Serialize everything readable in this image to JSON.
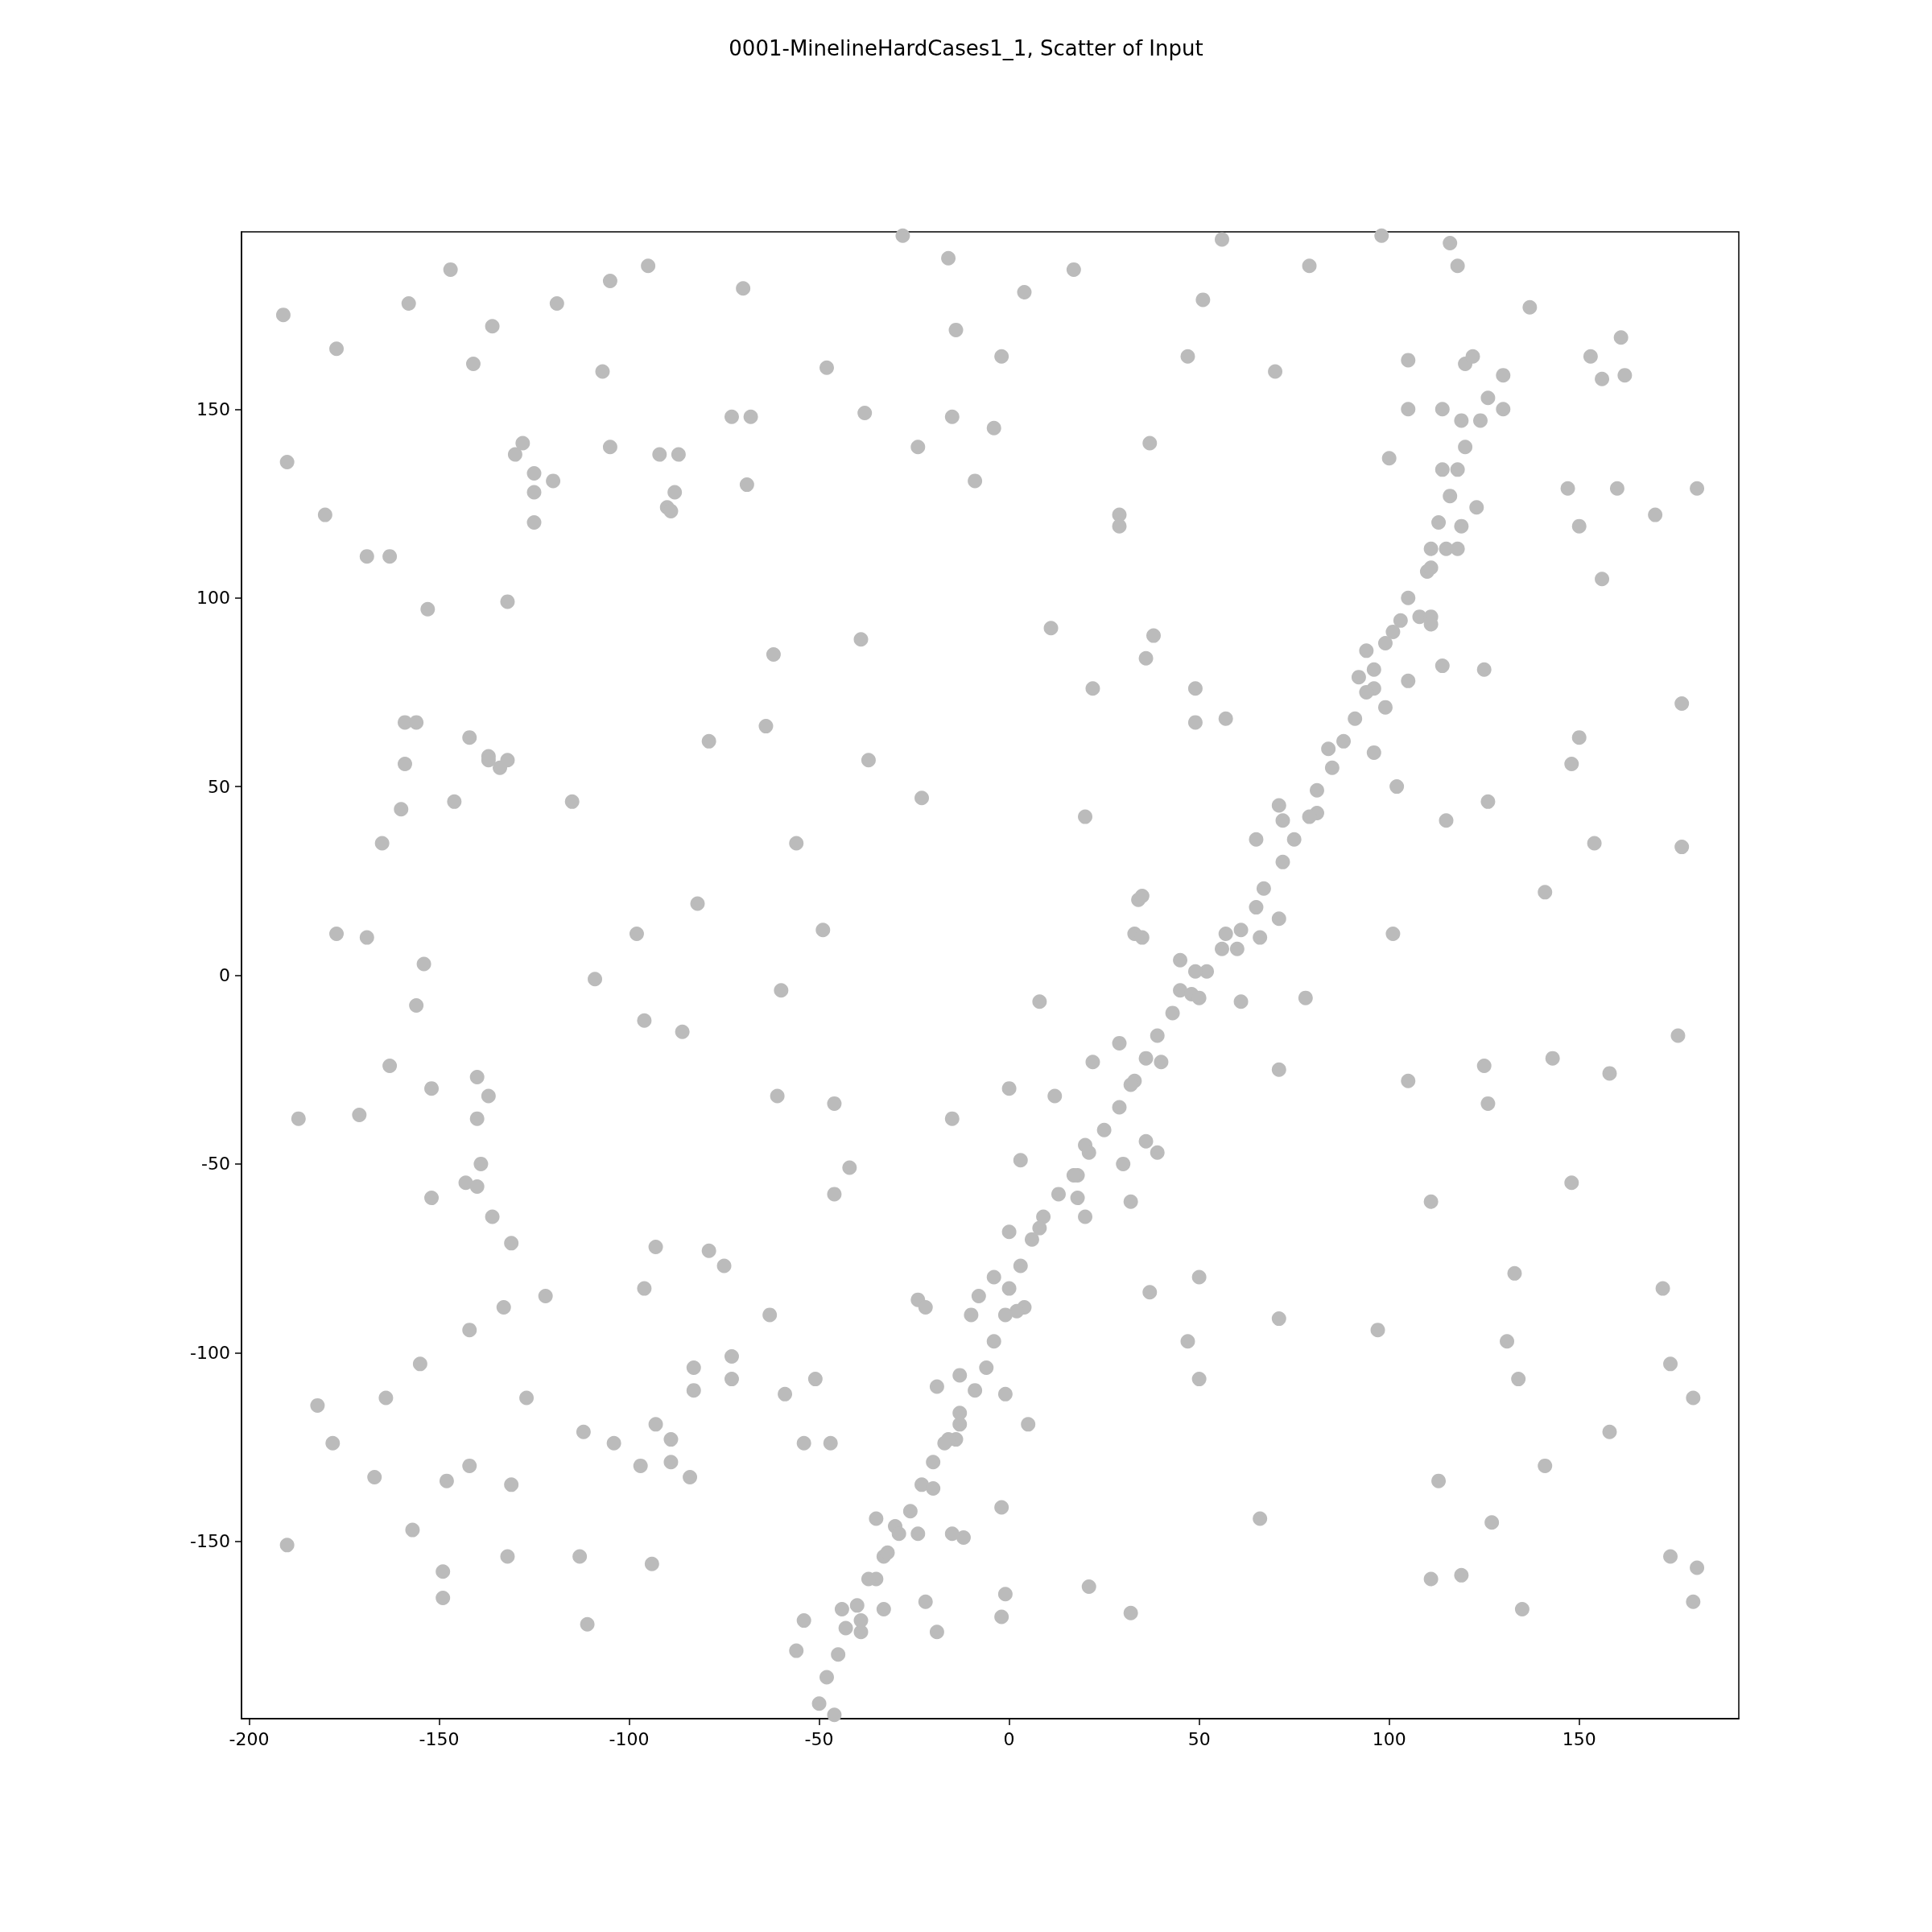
{
  "chart_data": {
    "type": "scatter",
    "title": "0001-MinelineHardCases1_1, Scatter of Input",
    "xlim": [
      -202,
      192
    ],
    "ylim": [
      -197,
      197
    ],
    "xticks": [
      -200,
      -150,
      -100,
      -50,
      0,
      50,
      100,
      150
    ],
    "yticks": [
      -150,
      -100,
      -50,
      0,
      50,
      100,
      150
    ],
    "grid": false,
    "marker": "circle",
    "series": [
      {
        "color": "#bbbbbb",
        "x": [
          -191,
          -190,
          -177,
          -180,
          -169,
          -163,
          -158,
          -147,
          -136,
          -141,
          -153,
          -132,
          -128,
          -130,
          -125,
          -125,
          -125,
          -120,
          -119,
          -105,
          -107,
          -105,
          -95,
          -92,
          -87,
          -88,
          -90,
          -89,
          -70,
          -73,
          -68,
          -69,
          -48,
          -38,
          -39,
          -62,
          -28,
          -16,
          -14,
          -15,
          -24,
          -9,
          -4,
          -2,
          4,
          17,
          51,
          47,
          56,
          79,
          70,
          98,
          116,
          118,
          105,
          120,
          122,
          137,
          130,
          126,
          130,
          114,
          105,
          119,
          124,
          153,
          156,
          161,
          162,
          181,
          170,
          160,
          147,
          150,
          156,
          177,
          150,
          148,
          154,
          177,
          141,
          100,
          114,
          118,
          116,
          123,
          113,
          119,
          111,
          115,
          118,
          120,
          110,
          111,
          105,
          108,
          111,
          111,
          103,
          101,
          99,
          94,
          96,
          92,
          96,
          94,
          99,
          105,
          114,
          125,
          91,
          96,
          88,
          84,
          85,
          81,
          102,
          115,
          126,
          81,
          79,
          71,
          72,
          75,
          65,
          72,
          67,
          65,
          71,
          61,
          57,
          66,
          56,
          60,
          101,
          52,
          49,
          45,
          45,
          48,
          50,
          61,
          78,
          43,
          39,
          29,
          40,
          36,
          22,
          33,
          32,
          71,
          105,
          125,
          143,
          158,
          176,
          126,
          29,
          25,
          20,
          21,
          39,
          36,
          30,
          3,
          18,
          17,
          13,
          18,
          32,
          20,
          9,
          8,
          0,
          6,
          3,
          -4,
          0,
          -8,
          4,
          2,
          -1,
          -10,
          -4,
          -6,
          -13,
          -1,
          -9,
          -19,
          -13,
          -13,
          5,
          -14,
          -16,
          -17,
          -20,
          -23,
          -20,
          -26,
          -12,
          -15,
          -24,
          -35,
          -30,
          -29,
          -33,
          -32,
          -35,
          -37,
          -33,
          -40,
          -22,
          -44,
          -39,
          -43,
          -39,
          -19,
          -54,
          -56,
          -45,
          -48,
          -50,
          -46,
          -2,
          -1,
          21,
          32,
          -2,
          66,
          47,
          50,
          50,
          37,
          71,
          97,
          111,
          113,
          111,
          119,
          127,
          135,
          141,
          134,
          131,
          133,
          148,
          158,
          172,
          174,
          180,
          174,
          181,
          180,
          11,
          22,
          37,
          29,
          29,
          38,
          36,
          49,
          49,
          57,
          20,
          34,
          35,
          33,
          35,
          8,
          0,
          12,
          -23,
          -15,
          -42,
          -46,
          -46,
          -61,
          -60,
          -56,
          -64,
          -79,
          -82,
          -49,
          -37,
          -98,
          -96,
          -86,
          -109,
          -115,
          -146,
          -142,
          -137,
          -137,
          -134,
          -132,
          -159,
          -156,
          -159,
          -160,
          -165,
          -177,
          -169,
          -154,
          -156,
          -163,
          -152,
          -140,
          -137,
          -140,
          -171,
          -187,
          -139,
          -143,
          -140,
          -152,
          -136,
          -131,
          -133,
          -122,
          -142,
          -155,
          -164,
          -182,
          -127,
          -178,
          -167,
          -148,
          -142,
          -131,
          -157,
          -190,
          -149,
          -149,
          -132,
          -113,
          -111,
          -94,
          -112,
          -104,
          -97,
          -89,
          -89,
          -93,
          -84,
          -83,
          -83,
          -73,
          -73,
          -93,
          -96,
          -79,
          -75,
          -63,
          -59,
          -51,
          -54,
          -47,
          -24,
          -22
        ],
        "values": [
          175,
          136,
          166,
          122,
          111,
          111,
          178,
          187,
          172,
          162,
          97,
          99,
          141,
          138,
          133,
          128,
          120,
          131,
          178,
          184,
          160,
          140,
          188,
          138,
          138,
          128,
          124,
          123,
          182,
          148,
          148,
          130,
          161,
          149,
          89,
          85,
          196,
          190,
          171,
          148,
          140,
          131,
          145,
          164,
          181,
          187,
          179,
          164,
          195,
          188,
          160,
          196,
          194,
          188,
          163,
          162,
          164,
          177,
          159,
          153,
          150,
          150,
          150,
          147,
          147,
          164,
          158,
          169,
          159,
          129,
          122,
          129,
          129,
          119,
          105,
          72,
          63,
          56,
          35,
          34,
          22,
          137,
          134,
          134,
          127,
          124,
          120,
          119,
          113,
          113,
          113,
          140,
          107,
          108,
          100,
          95,
          95,
          93,
          94,
          91,
          88,
          86,
          81,
          79,
          76,
          75,
          71,
          78,
          82,
          81,
          68,
          59,
          62,
          60,
          55,
          49,
          50,
          41,
          46,
          43,
          42,
          45,
          41,
          36,
          36,
          30,
          23,
          18,
          15,
          12,
          11,
          10,
          7,
          7,
          11,
          1,
          1,
          4,
          -4,
          -5,
          -6,
          -7,
          -6,
          -10,
          -16,
          -18,
          -23,
          -22,
          -23,
          -28,
          -29,
          -25,
          -28,
          -24,
          -22,
          -26,
          -16,
          -34,
          -35,
          -41,
          -45,
          -47,
          -47,
          -44,
          -50,
          -49,
          -53,
          -53,
          -58,
          -59,
          -60,
          -64,
          -64,
          -67,
          -68,
          -70,
          -77,
          -80,
          -83,
          -85,
          -88,
          -89,
          -90,
          -90,
          -97,
          -104,
          -106,
          -111,
          -110,
          -109,
          -116,
          -119,
          -119,
          -123,
          -123,
          -124,
          -129,
          -135,
          -136,
          -142,
          -149,
          -148,
          -148,
          -144,
          -146,
          -148,
          -154,
          -153,
          -160,
          -160,
          -168,
          -167,
          -166,
          -168,
          -171,
          -173,
          -174,
          -174,
          -171,
          -179,
          -180,
          -186,
          -193,
          -196,
          -170,
          -164,
          -162,
          -169,
          -141,
          -144,
          -97,
          -107,
          -80,
          -84,
          -91,
          -94,
          -60,
          -134,
          -160,
          -159,
          -145,
          -168,
          -130,
          -107,
          -97,
          -79,
          -55,
          -121,
          -83,
          -103,
          -112,
          -154,
          -157,
          -166,
          92,
          76,
          141,
          122,
          119,
          90,
          84,
          76,
          67,
          68,
          42,
          20,
          21,
          11,
          10,
          -7,
          -30,
          -32,
          47,
          -38,
          -51,
          -34,
          -58,
          -32,
          -4,
          35,
          66,
          62,
          19,
          12,
          57,
          11,
          -12,
          -15,
          -1,
          46,
          46,
          63,
          58,
          57,
          55,
          57,
          67,
          67,
          56,
          44,
          35,
          11,
          10,
          3,
          -8,
          -24,
          -30,
          -27,
          -32,
          -38,
          -37,
          -38,
          -50,
          -55,
          -56,
          -59,
          -64,
          -71,
          -88,
          -85,
          -94,
          -103,
          -112,
          -114,
          -112,
          -124,
          -133,
          -134,
          -130,
          -135,
          -147,
          -151,
          -158,
          -165,
          -154,
          -154,
          -172,
          -156,
          -121,
          -124,
          -130,
          -129,
          -123,
          -119,
          -133,
          -110,
          -104,
          -107,
          -101,
          -72,
          -83,
          -73,
          -77,
          -90,
          -111,
          -107,
          -124,
          -124,
          -86,
          -88
        ]
      }
    ]
  }
}
